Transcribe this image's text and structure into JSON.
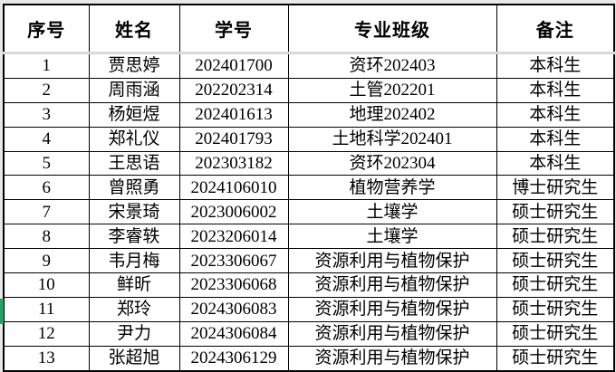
{
  "table": {
    "columns": [
      {
        "key": "index",
        "label": "序号"
      },
      {
        "key": "name",
        "label": "姓名"
      },
      {
        "key": "student-id",
        "label": "学号"
      },
      {
        "key": "major-class",
        "label": "专业班级"
      },
      {
        "key": "remark",
        "label": "备注"
      }
    ],
    "rows": [
      [
        "1",
        "贾思婷",
        "202401700",
        "资环202403",
        "本科生"
      ],
      [
        "2",
        "周雨涵",
        "202202314",
        "土管202201",
        "本科生"
      ],
      [
        "3",
        "杨姮煜",
        "202401613",
        "地理202402",
        "本科生"
      ],
      [
        "4",
        "郑礼仪",
        "202401793",
        "土地科学202401",
        "本科生"
      ],
      [
        "5",
        "王思语",
        "202303182",
        "资环202304",
        "本科生"
      ],
      [
        "6",
        "曾照勇",
        "2024106010",
        "植物营养学",
        "博士研究生"
      ],
      [
        "7",
        "宋景琦",
        "2023006002",
        "土壤学",
        "硕士研究生"
      ],
      [
        "8",
        "李睿轶",
        "2023206014",
        "土壤学",
        "硕士研究生"
      ],
      [
        "9",
        "韦月梅",
        "2023306067",
        "资源利用与植物保护",
        "硕士研究生"
      ],
      [
        "10",
        "鲜昕",
        "2023306068",
        "资源利用与植物保护",
        "硕士研究生"
      ],
      [
        "11",
        "郑玲",
        "2024306083",
        "资源利用与植物保护",
        "硕士研究生"
      ],
      [
        "12",
        "尹力",
        "2024306084",
        "资源利用与植物保护",
        "硕士研究生"
      ],
      [
        "13",
        "张超旭",
        "2024306129",
        "资源利用与植物保护",
        "硕士研究生"
      ]
    ],
    "selected_row_number": "11"
  },
  "colors": {
    "selection_green": "#21a366",
    "border_black": "#000000",
    "header_separator_gray": "#d9d9d9",
    "page_background": "#e8e8e8",
    "cell_background": "#ffffff"
  }
}
